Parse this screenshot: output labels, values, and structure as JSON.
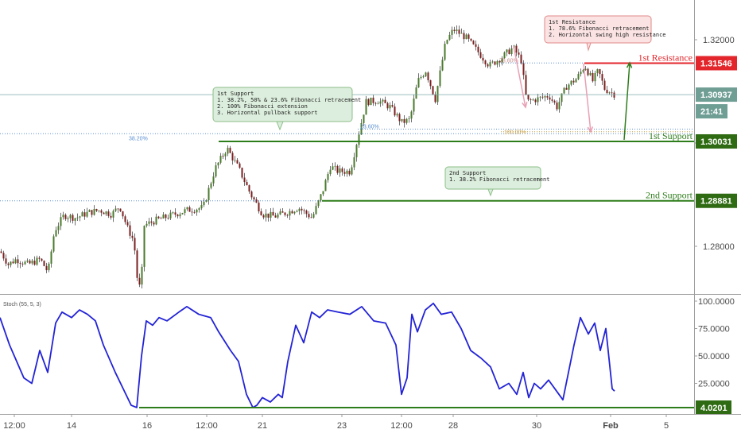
{
  "chart_data": [
    {
      "type": "candlestick",
      "title": "",
      "ylim": [
        1.268,
        1.326
      ],
      "y_ticks": [
        "1.32000",
        "1.30000",
        "1.28000"
      ],
      "y_tick_values": [
        1.32,
        1.3,
        1.28
      ],
      "x_ticks": [
        "12:00",
        "14",
        "16",
        "12:00",
        "21",
        "23",
        "12:00",
        "28",
        "30",
        "Feb",
        "5"
      ],
      "price_path": [
        {
          "t": 0,
          "p": 1.279
        },
        {
          "t": 10,
          "p": 1.2765
        },
        {
          "t": 20,
          "p": 1.2775
        },
        {
          "t": 35,
          "p": 1.2765
        },
        {
          "t": 50,
          "p": 1.2775
        },
        {
          "t": 60,
          "p": 1.275
        },
        {
          "t": 68,
          "p": 1.283
        },
        {
          "t": 80,
          "p": 1.286
        },
        {
          "t": 95,
          "p": 1.2855
        },
        {
          "t": 110,
          "p": 1.2865
        },
        {
          "t": 125,
          "p": 1.287
        },
        {
          "t": 140,
          "p": 1.2862
        },
        {
          "t": 150,
          "p": 1.2878
        },
        {
          "t": 160,
          "p": 1.2835
        },
        {
          "t": 168,
          "p": 1.281
        },
        {
          "t": 172,
          "p": 1.274
        },
        {
          "t": 177,
          "p": 1.271
        },
        {
          "t": 180,
          "p": 1.284
        },
        {
          "t": 195,
          "p": 1.285
        },
        {
          "t": 215,
          "p": 1.286
        },
        {
          "t": 235,
          "p": 1.287
        },
        {
          "t": 255,
          "p": 1.2875
        },
        {
          "t": 270,
          "p": 1.295
        },
        {
          "t": 285,
          "p": 1.299
        },
        {
          "t": 300,
          "p": 1.295
        },
        {
          "t": 315,
          "p": 1.29
        },
        {
          "t": 330,
          "p": 1.2862
        },
        {
          "t": 345,
          "p": 1.2858
        },
        {
          "t": 360,
          "p": 1.2865
        },
        {
          "t": 375,
          "p": 1.2875
        },
        {
          "t": 392,
          "p": 1.2855
        },
        {
          "t": 405,
          "p": 1.2905
        },
        {
          "t": 415,
          "p": 1.2955
        },
        {
          "t": 425,
          "p": 1.2945
        },
        {
          "t": 440,
          "p": 1.2945
        },
        {
          "t": 448,
          "p": 1.3
        },
        {
          "t": 460,
          "p": 1.308
        },
        {
          "t": 475,
          "p": 1.3082
        },
        {
          "t": 490,
          "p": 1.307
        },
        {
          "t": 505,
          "p": 1.304
        },
        {
          "t": 515,
          "p": 1.3045
        },
        {
          "t": 525,
          "p": 1.312
        },
        {
          "t": 535,
          "p": 1.314
        },
        {
          "t": 547,
          "p": 1.3085
        },
        {
          "t": 560,
          "p": 1.3195
        },
        {
          "t": 570,
          "p": 1.322
        },
        {
          "t": 585,
          "p": 1.3205
        },
        {
          "t": 600,
          "p": 1.3178
        },
        {
          "t": 615,
          "p": 1.315
        },
        {
          "t": 630,
          "p": 1.3165
        },
        {
          "t": 645,
          "p": 1.3185
        },
        {
          "t": 655,
          "p": 1.316
        },
        {
          "t": 662,
          "p": 1.308
        },
        {
          "t": 675,
          "p": 1.3085
        },
        {
          "t": 690,
          "p": 1.3092
        },
        {
          "t": 700,
          "p": 1.307
        },
        {
          "t": 712,
          "p": 1.311
        },
        {
          "t": 725,
          "p": 1.3125
        },
        {
          "t": 735,
          "p": 1.315
        },
        {
          "t": 745,
          "p": 1.312
        },
        {
          "t": 752,
          "p": 1.314
        },
        {
          "t": 760,
          "p": 1.3105
        },
        {
          "t": 773,
          "p": 1.3094
        }
      ],
      "current_price": {
        "value": 1.30937,
        "label": "1.30937",
        "countdown": "21:41"
      },
      "levels": [
        {
          "name": "1st Resistance",
          "value": 1.31546,
          "label": "1.31546",
          "color": "#e3262b"
        },
        {
          "name": "1st Support",
          "value": 1.30031,
          "label": "1.30031",
          "color": "#2e7d1b"
        },
        {
          "name": "2nd Support",
          "value": 1.28881,
          "label": "2nd Support",
          "color": "#2e7d1b"
        }
      ],
      "level_labels": {
        "resistance": "1st Resistance",
        "support1": "1st Support",
        "support1_price": "1.30031",
        "support2": "2nd Support",
        "support2_price": "1.28881",
        "resistance_price": "1.31546"
      },
      "fib_labels": [
        "38.20%",
        "23.60%",
        "100.00%",
        "78.60%"
      ],
      "annotations": {
        "resistance_box": [
          "1st Resistance",
          "1. 78.6% Fibonacci retracement",
          "2. Horizontal swing high resistance"
        ],
        "support1_box": [
          "1st Support",
          "1. 38.2%, 50% & 23.6% Fibonacci retracement",
          "2. 100% Fibonacci extension",
          "3. Horizontal pullback support"
        ],
        "support2_box": [
          "2nd Support",
          "1. 38.2% Fibonacci retracement"
        ]
      }
    },
    {
      "type": "line",
      "title": "Stoch (55, 5, 3)",
      "ylim": [
        0,
        100
      ],
      "y_ticks": [
        "100.0000",
        "75.0000",
        "50.0000",
        "25.0000"
      ],
      "y_tick_values": [
        100,
        75,
        50,
        25
      ],
      "support_level": {
        "value": 4.0201,
        "label": "4.0201"
      },
      "series": [
        {
          "x": [
            0,
            12,
            18,
            30,
            40,
            50,
            60,
            70,
            78,
            90,
            100,
            110,
            120,
            130,
            145,
            155,
            165,
            172,
            178,
            184,
            192,
            200,
            210,
            225,
            235,
            250,
            265,
            275,
            290,
            300,
            310,
            318,
            323,
            330,
            340,
            350,
            355,
            362,
            372,
            382,
            392,
            402,
            412,
            425,
            440,
            455,
            470,
            485,
            498,
            505,
            512,
            518,
            525,
            535,
            545,
            555,
            568,
            580,
            592,
            605,
            617,
            628,
            640,
            650,
            658,
            665,
            672,
            680,
            690,
            700,
            708,
            715,
            722,
            730,
            740,
            748,
            755,
            762,
            770,
            773
          ],
          "y": [
            85,
            60,
            50,
            30,
            25,
            55,
            35,
            80,
            90,
            85,
            92,
            88,
            82,
            60,
            35,
            20,
            5,
            3,
            50,
            82,
            78,
            85,
            82,
            90,
            95,
            88,
            85,
            72,
            55,
            45,
            15,
            3,
            5,
            12,
            8,
            15,
            12,
            45,
            78,
            62,
            90,
            85,
            92,
            90,
            88,
            95,
            82,
            80,
            60,
            15,
            30,
            88,
            72,
            92,
            98,
            88,
            90,
            75,
            55,
            48,
            40,
            20,
            25,
            15,
            35,
            12,
            25,
            20,
            28,
            18,
            10,
            35,
            60,
            85,
            70,
            80,
            55,
            75,
            20,
            18
          ]
        }
      ]
    }
  ]
}
